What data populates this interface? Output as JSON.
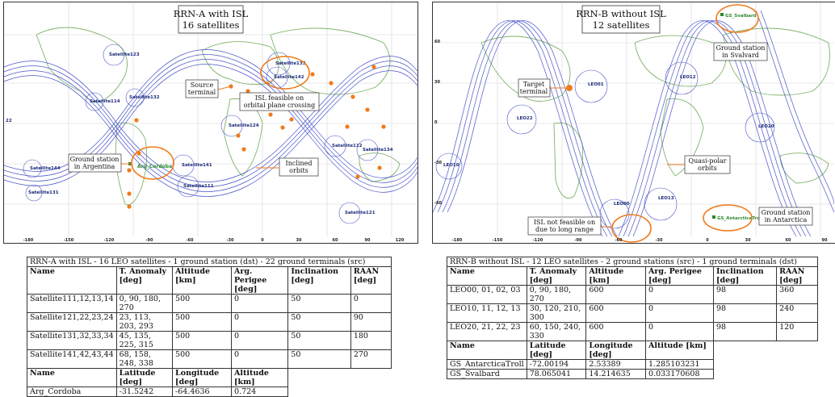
{
  "panel_a": {
    "title_line1": "RRN-A with ISL",
    "title_line2": "16 satellites",
    "satellites": [
      {
        "name": "Satellite123"
      },
      {
        "name": "Satellite133"
      },
      {
        "name": "Satellite142"
      },
      {
        "name": "Satellite114"
      },
      {
        "name": "Satellite132"
      },
      {
        "name": "Satellite124"
      },
      {
        "name": "Satellite112"
      },
      {
        "name": "Satellite134"
      },
      {
        "name": "Satellite141"
      },
      {
        "name": "Satellite144"
      },
      {
        "name": "Satellite131"
      },
      {
        "name": "Satellite111"
      },
      {
        "name": "Satellite121"
      }
    ],
    "ground_station": "Arg_Cordoba",
    "callouts": {
      "source_1": "Source",
      "source_2": "terminal",
      "isl_1": "ISL feasible on",
      "isl_2": "orbital plane crossing",
      "gs_1": "Ground station",
      "gs_2": "in Argentina",
      "inclined_1": "Inclined",
      "inclined_2": "orbits"
    },
    "edge_label": "22",
    "x_ticks": [
      "-180",
      "-150",
      "-120",
      "-90",
      "-60",
      "-30",
      "0",
      "30",
      "60",
      "90",
      "120"
    ]
  },
  "panel_b": {
    "title_line1": "RRN-B without ISL",
    "title_line2": "12 satellites",
    "satellites": [
      {
        "name": "LEO01"
      },
      {
        "name": "LEO12"
      },
      {
        "name": "LEO22"
      },
      {
        "name": "LEO20"
      },
      {
        "name": "LEO10"
      },
      {
        "name": "LEO00"
      },
      {
        "name": "LEO13"
      }
    ],
    "ground_stations": [
      "GS_Svalbard",
      "GS_AntarcticaTroll"
    ],
    "callouts": {
      "svalbard_1": "Ground station",
      "svalbard_2": "in Svalvard",
      "target_1": "Target",
      "target_2": "terminal",
      "polar_1": "Quasi-polar",
      "polar_2": "orbits",
      "notfeasible_1": "ISL not feasible on",
      "notfeasible_2": "due to long range",
      "antarctica_1": "Ground station",
      "antarctica_2": "in Antarctica"
    },
    "y_ticks": [
      "60",
      "30",
      "0",
      "-30",
      "-60"
    ],
    "x_ticks": [
      "-180",
      "-150",
      "-120",
      "-90",
      "-60",
      "-30",
      "0",
      "30",
      "60",
      "90"
    ]
  },
  "table_a": {
    "caption": "RRN-A with ISL - 16 LEO satellites - 1 ground station (dst) - 22 ground terminals (src)",
    "headers": [
      "Name",
      "T. Anomaly [deg]",
      "Altitude [km]",
      "Arg. Perigee [deg]",
      "Inclination [deg]",
      "RAAN [deg]"
    ],
    "rows": [
      [
        "Satellite111,12,13,14",
        "0, 90, 180, 270",
        "500",
        "0",
        "50",
        "0"
      ],
      [
        "Satellite121,22,23,24",
        "23, 113, 203, 293",
        "500",
        "0",
        "50",
        "90"
      ],
      [
        "Satellite131,32,33,34",
        "45, 135, 225, 315",
        "500",
        "0",
        "50",
        "180"
      ],
      [
        "Satellite141,42,43,44",
        "68, 158, 248, 338",
        "500",
        "0",
        "50",
        "270"
      ]
    ],
    "gs_headers": [
      "Name",
      "Latitude [deg]",
      "Longitude [deg]",
      "Altitude [km]"
    ],
    "gs_rows": [
      [
        "Arg_Cordoba",
        "-31.5242",
        "-64.4636",
        "0.724"
      ]
    ]
  },
  "table_b": {
    "caption": "RRN-B without ISL - 12 LEO satellites - 2 ground stations (src) - 1 ground terminals (dst)",
    "headers": [
      "Name",
      "T. Anomaly [deg]",
      "Altitude [km]",
      "Arg. Perigee [deg]",
      "Inclination [deg]",
      "RAAN [deg]"
    ],
    "rows": [
      [
        "LEO00, 01, 02, 03",
        "0, 90, 180, 270",
        "600",
        "0",
        "98",
        "360"
      ],
      [
        "LEO10, 11, 12, 13",
        "30, 120, 210, 300",
        "600",
        "0",
        "98",
        "240"
      ],
      [
        "LEO20, 21, 22, 23",
        "60, 150, 240, 330",
        "600",
        "0",
        "98",
        "120"
      ]
    ],
    "gs_headers": [
      "Name",
      "Latitude [deg]",
      "Longitude [deg]",
      "Altitude [km]"
    ],
    "gs_rows": [
      [
        "GS_AntarcticaTroll",
        "-72.00194",
        "2.53389",
        "1.285103231"
      ],
      [
        "GS_Svalbard",
        "78.065041",
        "14.214635",
        "0.033170608"
      ]
    ]
  },
  "colors": {
    "orbit": "#4a55c8",
    "terminal": "#f07a1a",
    "ellipse": "#f07a1a",
    "land": "#7fb36a",
    "satellite_label": "#1b2a7a",
    "station_label": "#2d8a2d"
  }
}
